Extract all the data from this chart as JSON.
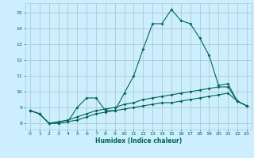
{
  "title": "",
  "xlabel": "Humidex (Indice chaleur)",
  "background_color": "#cceeff",
  "grid_color": "#aacccc",
  "line_color": "#006655",
  "x_values": [
    0,
    1,
    2,
    3,
    4,
    5,
    6,
    7,
    8,
    9,
    10,
    11,
    12,
    13,
    14,
    15,
    16,
    17,
    18,
    19,
    20,
    21,
    22,
    23
  ],
  "line1_y": [
    8.8,
    8.6,
    8.0,
    8.0,
    8.1,
    9.0,
    9.6,
    9.6,
    8.8,
    8.8,
    9.9,
    11.0,
    12.7,
    14.3,
    14.3,
    15.2,
    14.5,
    14.3,
    13.4,
    12.3,
    10.4,
    10.5,
    9.4,
    9.1
  ],
  "line2_y": [
    8.8,
    8.6,
    8.0,
    8.1,
    8.2,
    8.4,
    8.6,
    8.8,
    8.9,
    9.0,
    9.2,
    9.3,
    9.5,
    9.6,
    9.7,
    9.8,
    9.9,
    10.0,
    10.1,
    10.2,
    10.3,
    10.3,
    9.4,
    9.1
  ],
  "line3_y": [
    8.8,
    8.6,
    8.0,
    8.0,
    8.1,
    8.2,
    8.4,
    8.6,
    8.7,
    8.8,
    8.9,
    9.0,
    9.1,
    9.2,
    9.3,
    9.3,
    9.4,
    9.5,
    9.6,
    9.7,
    9.8,
    9.9,
    9.4,
    9.1
  ],
  "ylim": [
    7.6,
    15.6
  ],
  "yticks": [
    8,
    9,
    10,
    11,
    12,
    13,
    14,
    15
  ],
  "xticks": [
    0,
    1,
    2,
    3,
    4,
    5,
    6,
    7,
    8,
    9,
    10,
    11,
    12,
    13,
    14,
    15,
    16,
    17,
    18,
    19,
    20,
    21,
    22,
    23
  ],
  "xlim": [
    -0.5,
    23.5
  ]
}
